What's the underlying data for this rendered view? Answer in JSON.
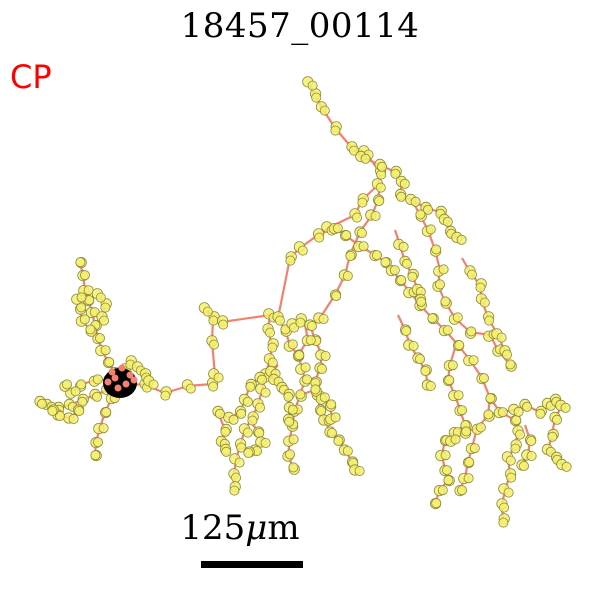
{
  "header": {
    "title": "18457_00114"
  },
  "annotation": {
    "region_label": "CP",
    "region_color": "#ff0000"
  },
  "scale": {
    "value": "125",
    "unit_symbol": "μ",
    "unit_suffix": "m"
  },
  "colors": {
    "branch": "#f48070",
    "node_fill": "#f5f070",
    "node_edge": "#8a8a3a",
    "soma": "#000000"
  }
}
